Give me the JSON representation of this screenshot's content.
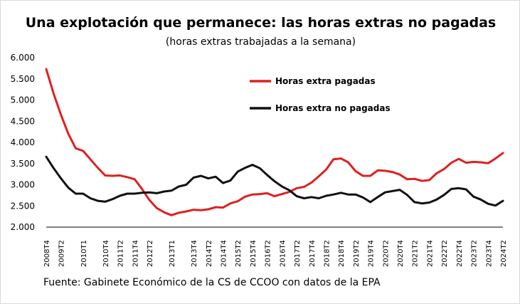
{
  "chart_data": {
    "type": "line",
    "title": "Una explotación que permanece: las horas extras no pagadas",
    "subtitle": "(horas extras trabajadas  a la semana)",
    "source": "Fuente: Gabinete Económico de la CS de CCOO con datos de la EPA",
    "xlabel": "",
    "ylabel": "",
    "ylim": [
      2000,
      6000
    ],
    "yticks": [
      2000,
      2500,
      3000,
      3500,
      4000,
      4500,
      5000,
      5500,
      6000
    ],
    "ytick_labels": [
      "2.000",
      "2.500",
      "3.000",
      "3.500",
      "4.000",
      "4.500",
      "5.000",
      "5.500",
      "6.000"
    ],
    "grid": false,
    "legend_position": "top-right inside plot",
    "x": [
      "2008T4",
      "2009T1",
      "2009T2",
      "2009T3",
      "2009T4",
      "2010T1",
      "2010T2",
      "2010T3",
      "2010T4",
      "2011T1",
      "2011T2",
      "2011T3",
      "2011T4",
      "2012T1",
      "2012T2",
      "2012T3",
      "2012T4",
      "2013T1",
      "2013T2",
      "2013T3",
      "2013T4",
      "2014T1",
      "2014T2",
      "2014T3",
      "2014T4",
      "2015T1",
      "2015T2",
      "2015T3",
      "2015T4",
      "2016T1",
      "2016T2",
      "2016T3",
      "2016T4",
      "2017T1",
      "2017T2",
      "2017T3",
      "2017T4",
      "2018T1",
      "2018T2",
      "2018T3",
      "2018T4",
      "2019T1",
      "2019T2",
      "2019T3",
      "2019T4",
      "2020T1",
      "2020T2",
      "2020T3",
      "2020T4",
      "2021T1",
      "2021T2",
      "2021T3",
      "2021T4",
      "2022T1",
      "2022T2",
      "2022T3",
      "2022T4",
      "2023T1",
      "2023T2",
      "2023T3",
      "2023T4",
      "2024T1",
      "2024T2"
    ],
    "tick_labels": [
      "2008T4",
      "2009T2",
      "2010T1",
      "2010T4",
      "2011T2",
      "2011T4",
      "2012T2",
      "2013T1",
      "2013T4",
      "2014T2",
      "2014T4",
      "2015T2",
      "2015T4",
      "2016T2",
      "2016T4",
      "2017T2",
      "2017T4",
      "2018T2",
      "2018T4",
      "2019T2",
      "2019T4",
      "2020T2",
      "2020T4",
      "2021T2",
      "2021T4",
      "2022T2",
      "2022T4",
      "2023T2",
      "2023T4",
      "2024T2"
    ],
    "series": [
      {
        "name": "Horas extra pagadas",
        "color": "#e02020",
        "values": [
          5730,
          5150,
          4650,
          4200,
          3860,
          3800,
          3600,
          3400,
          3220,
          3210,
          3220,
          3180,
          3130,
          2900,
          2640,
          2450,
          2350,
          2280,
          2340,
          2370,
          2410,
          2400,
          2420,
          2470,
          2460,
          2560,
          2610,
          2720,
          2770,
          2780,
          2800,
          2730,
          2780,
          2830,
          2920,
          2950,
          3050,
          3200,
          3360,
          3600,
          3620,
          3530,
          3320,
          3210,
          3210,
          3340,
          3330,
          3300,
          3240,
          3130,
          3140,
          3090,
          3110,
          3270,
          3370,
          3520,
          3610,
          3520,
          3540,
          3530,
          3510,
          3620,
          3750
        ]
      },
      {
        "name": "Horas extra no pagadas",
        "color": "#111111",
        "values": [
          3660,
          3390,
          3150,
          2930,
          2790,
          2790,
          2680,
          2620,
          2600,
          2660,
          2740,
          2790,
          2790,
          2810,
          2820,
          2800,
          2840,
          2860,
          2960,
          3000,
          3170,
          3210,
          3150,
          3190,
          3040,
          3100,
          3310,
          3400,
          3470,
          3390,
          3230,
          3080,
          2960,
          2870,
          2730,
          2680,
          2710,
          2680,
          2740,
          2770,
          2810,
          2770,
          2770,
          2700,
          2590,
          2710,
          2820,
          2850,
          2880,
          2760,
          2590,
          2560,
          2580,
          2650,
          2760,
          2900,
          2920,
          2890,
          2720,
          2650,
          2550,
          2510,
          2620
        ]
      }
    ]
  }
}
